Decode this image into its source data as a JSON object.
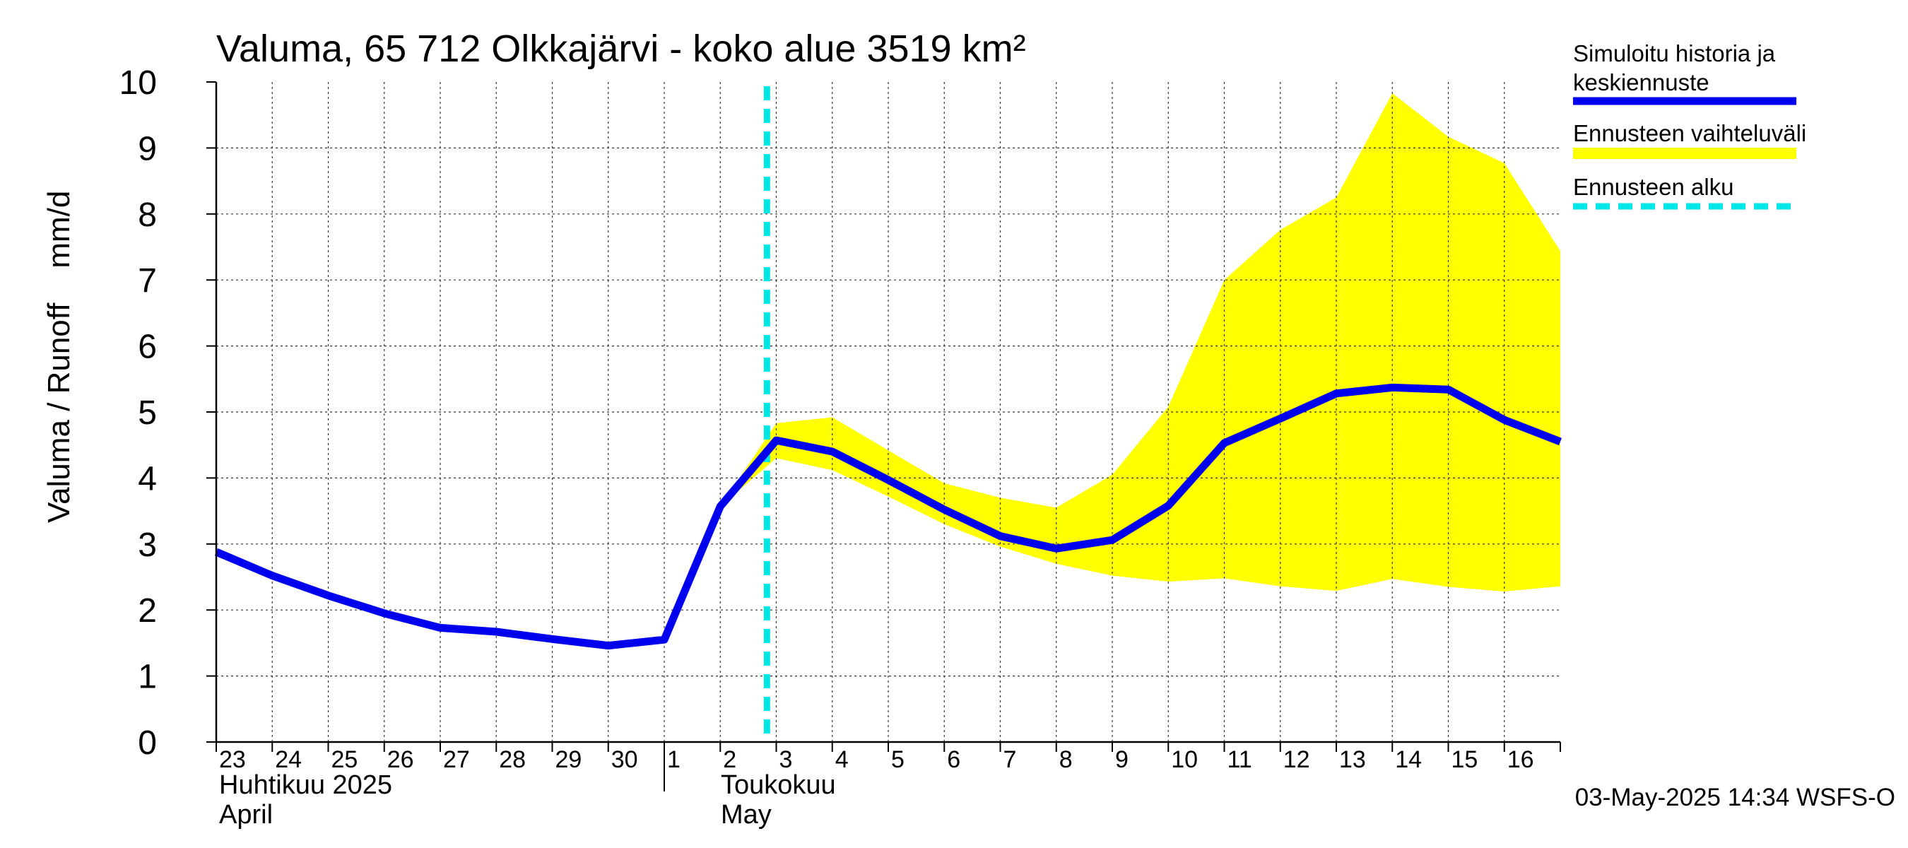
{
  "chart_data": {
    "type": "line",
    "title": "Valuma, 65 712 Olkkajärvi - koko alue 3519 km²",
    "ylabel": "Valuma / Runoff    mm/d",
    "ylim": [
      0,
      10
    ],
    "yticks": [
      "0",
      "1",
      "2",
      "3",
      "4",
      "5",
      "6",
      "7",
      "8",
      "9",
      "10"
    ],
    "xlim": [
      "2025-04-23",
      "2025-05-17"
    ],
    "x_tick_labels": [
      "23",
      "24",
      "25",
      "26",
      "27",
      "28",
      "29",
      "30",
      "1",
      "2",
      "3",
      "4",
      "5",
      "6",
      "7",
      "8",
      "9",
      "10",
      "11",
      "12",
      "13",
      "14",
      "15",
      "16"
    ],
    "month_labels": [
      {
        "fi": "Huhtikuu  2025",
        "en": "April"
      },
      {
        "fi": "Toukokuu",
        "en": "May"
      }
    ],
    "grid": true,
    "legend_position": "right",
    "forecast_start": "2025-05-02 20:00",
    "colors": {
      "median": "#0000ee",
      "range": "#ffff00",
      "forecast_start": "#00e5e5"
    },
    "series": [
      {
        "name": "Simuloitu historia ja keskiennuste",
        "x": [
          "2025-04-23",
          "2025-04-24",
          "2025-04-25",
          "2025-04-26",
          "2025-04-27",
          "2025-04-28",
          "2025-04-29",
          "2025-04-30",
          "2025-05-01",
          "2025-05-02",
          "2025-05-03",
          "2025-05-04",
          "2025-05-05",
          "2025-05-06",
          "2025-05-07",
          "2025-05-08",
          "2025-05-09",
          "2025-05-10",
          "2025-05-11",
          "2025-05-12",
          "2025-05-13",
          "2025-05-14",
          "2025-05-15",
          "2025-05-16",
          "2025-05-17"
        ],
        "values": [
          2.88,
          2.52,
          2.22,
          1.95,
          1.73,
          1.67,
          1.56,
          1.46,
          1.55,
          3.57,
          4.57,
          4.4,
          3.97,
          3.52,
          3.12,
          2.93,
          3.06,
          3.58,
          4.53,
          4.9,
          5.28,
          5.37,
          5.34,
          4.88,
          4.55
        ]
      },
      {
        "name": "Ennusteen vaihteluväli",
        "x": [
          "2025-05-02",
          "2025-05-03",
          "2025-05-04",
          "2025-05-05",
          "2025-05-06",
          "2025-05-07",
          "2025-05-08",
          "2025-05-09",
          "2025-05-10",
          "2025-05-11",
          "2025-05-12",
          "2025-05-13",
          "2025-05-14",
          "2025-05-15",
          "2025-05-16",
          "2025-05-17"
        ],
        "lower": [
          3.57,
          4.3,
          4.12,
          3.72,
          3.3,
          2.96,
          2.7,
          2.52,
          2.43,
          2.48,
          2.36,
          2.29,
          2.47,
          2.35,
          2.28,
          2.36
        ],
        "upper": [
          3.57,
          4.83,
          4.92,
          4.42,
          3.92,
          3.7,
          3.55,
          4.05,
          5.08,
          7.0,
          7.76,
          8.25,
          9.83,
          9.17,
          8.77,
          7.44
        ]
      }
    ],
    "legend": [
      {
        "label": "Simuloitu historia ja keskiennuste",
        "kind": "median"
      },
      {
        "label": "Ennusteen vaihteluväli",
        "kind": "range"
      },
      {
        "label": "Ennusteen alku",
        "kind": "forecast_start"
      }
    ],
    "timestamp": "03-May-2025 14:34 WSFS-O"
  }
}
